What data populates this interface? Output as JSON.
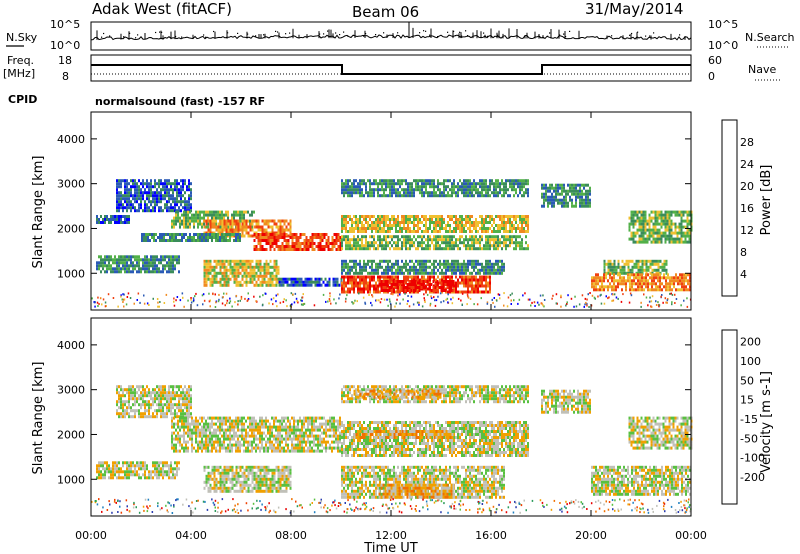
{
  "header": {
    "station": "Adak West (fitACF)",
    "beam": "Beam 06",
    "date": "31/May/2014"
  },
  "noise_panel": {
    "left_label": "N.Sky",
    "right_label": "N.Search",
    "tick_top": "10^5",
    "tick_bottom": "10^0"
  },
  "freq_panel": {
    "left_label_1": "Freq.",
    "left_label_2": "[MHz]",
    "right_label": "Nave",
    "left_ticks": [
      "18",
      "8"
    ],
    "right_ticks": [
      "60",
      "0"
    ]
  },
  "cpid": {
    "label": "CPID",
    "text": "normalsound (fast) -157 RF"
  },
  "colors": {
    "power": [
      "#0000ff",
      "#2a5ab5",
      "#3a8c5a",
      "#52b048",
      "#f0c030",
      "#f08a20",
      "#f04010",
      "#ee0000"
    ],
    "velocity": [
      "#2a3cb0",
      "#2080c0",
      "#2a9a5a",
      "#58c040",
      "#c0c0b8",
      "#f0a000",
      "#f07000",
      "#f04000",
      "#e80000"
    ]
  },
  "chart_data": [
    {
      "type": "heatmap",
      "name": "power",
      "ylabel": "Slant Range [km]",
      "xlabel": "",
      "yticks": [
        "1000",
        "2000",
        "3000",
        "4000"
      ],
      "xlim": [
        0,
        24
      ],
      "ylim": [
        180,
        4600
      ],
      "colorbar": {
        "label": "Power [dB]",
        "ticks": [
          "4",
          "8",
          "12",
          "16",
          "20",
          "24",
          "28"
        ]
      },
      "bands": [
        {
          "t0": 0.2,
          "t1": 1.5,
          "r0": 2150,
          "r1": 2300,
          "level": 1
        },
        {
          "t0": 1.0,
          "t1": 4.0,
          "r0": 2400,
          "r1": 3100,
          "level": 1
        },
        {
          "t0": 3.2,
          "t1": 6.5,
          "r0": 2050,
          "r1": 2400,
          "level": 3
        },
        {
          "t0": 4.5,
          "t1": 8.0,
          "r0": 1800,
          "r1": 2200,
          "level": 5
        },
        {
          "t0": 6.5,
          "t1": 10.0,
          "r0": 1500,
          "r1": 1900,
          "level": 6
        },
        {
          "t0": 2.0,
          "t1": 6.0,
          "r0": 1700,
          "r1": 1900,
          "level": 2
        },
        {
          "t0": 0.2,
          "t1": 3.5,
          "r0": 1000,
          "r1": 1400,
          "level": 2
        },
        {
          "t0": 4.5,
          "t1": 7.5,
          "r0": 750,
          "r1": 1300,
          "level": 4
        },
        {
          "t0": 7.5,
          "t1": 10.0,
          "r0": 700,
          "r1": 900,
          "level": 1
        },
        {
          "t0": 10.0,
          "t1": 17.5,
          "r0": 2700,
          "r1": 3100,
          "level": 2
        },
        {
          "t0": 10.0,
          "t1": 17.5,
          "r0": 1900,
          "r1": 2300,
          "level": 4
        },
        {
          "t0": 10.0,
          "t1": 17.5,
          "r0": 1550,
          "r1": 1850,
          "level": 3
        },
        {
          "t0": 10.0,
          "t1": 16.5,
          "r0": 1000,
          "r1": 1300,
          "level": 2
        },
        {
          "t0": 10.0,
          "t1": 16.0,
          "r0": 580,
          "r1": 950,
          "level": 6
        },
        {
          "t0": 11.5,
          "t1": 14.5,
          "r0": 600,
          "r1": 850,
          "level": 7
        },
        {
          "t0": 18.0,
          "t1": 20.0,
          "r0": 2500,
          "r1": 3000,
          "level": 2
        },
        {
          "t0": 20.5,
          "t1": 23.0,
          "r0": 1000,
          "r1": 1300,
          "level": 3
        },
        {
          "t0": 20.0,
          "t1": 24.0,
          "r0": 650,
          "r1": 1000,
          "level": 5
        },
        {
          "t0": 21.5,
          "t1": 24.0,
          "r0": 1700,
          "r1": 2400,
          "level": 3
        }
      ]
    },
    {
      "type": "heatmap",
      "name": "velocity",
      "ylabel": "Slant Range [km]",
      "xlabel": "Time UT",
      "yticks": [
        "1000",
        "2000",
        "3000",
        "4000"
      ],
      "xticks": [
        "00:00",
        "04:00",
        "08:00",
        "12:00",
        "16:00",
        "20:00",
        "00:00"
      ],
      "xlim": [
        0,
        24
      ],
      "ylim": [
        180,
        4600
      ],
      "colorbar": {
        "label": "Velocity [m s-1]",
        "ticks": [
          "200",
          "100",
          "50",
          "15",
          "-15",
          "-50",
          "-100",
          "-200"
        ]
      },
      "bands": [
        {
          "t0": 1.0,
          "t1": 4.0,
          "r0": 2400,
          "r1": 3100,
          "level": 4
        },
        {
          "t0": 3.2,
          "t1": 10.0,
          "r0": 1600,
          "r1": 2400,
          "level": 4
        },
        {
          "t0": 0.2,
          "t1": 3.5,
          "r0": 1000,
          "r1": 1400,
          "level": 4
        },
        {
          "t0": 4.5,
          "t1": 8.0,
          "r0": 750,
          "r1": 1300,
          "level": 4
        },
        {
          "t0": 10.0,
          "t1": 17.5,
          "r0": 2700,
          "r1": 3100,
          "level": 4
        },
        {
          "t0": 10.5,
          "t1": 14.0,
          "r0": 2800,
          "r1": 3000,
          "level": 5
        },
        {
          "t0": 10.0,
          "t1": 17.5,
          "r0": 1550,
          "r1": 2300,
          "level": 4
        },
        {
          "t0": 10.5,
          "t1": 14.5,
          "r0": 1900,
          "r1": 2100,
          "level": 5
        },
        {
          "t0": 10.0,
          "t1": 16.5,
          "r0": 580,
          "r1": 1300,
          "level": 4
        },
        {
          "t0": 11.5,
          "t1": 14.5,
          "r0": 600,
          "r1": 900,
          "level": 5
        },
        {
          "t0": 18.0,
          "t1": 20.0,
          "r0": 2500,
          "r1": 3000,
          "level": 4
        },
        {
          "t0": 20.0,
          "t1": 24.0,
          "r0": 650,
          "r1": 1300,
          "level": 4
        },
        {
          "t0": 21.5,
          "t1": 24.0,
          "r0": 1700,
          "r1": 2400,
          "level": 4
        }
      ]
    }
  ]
}
